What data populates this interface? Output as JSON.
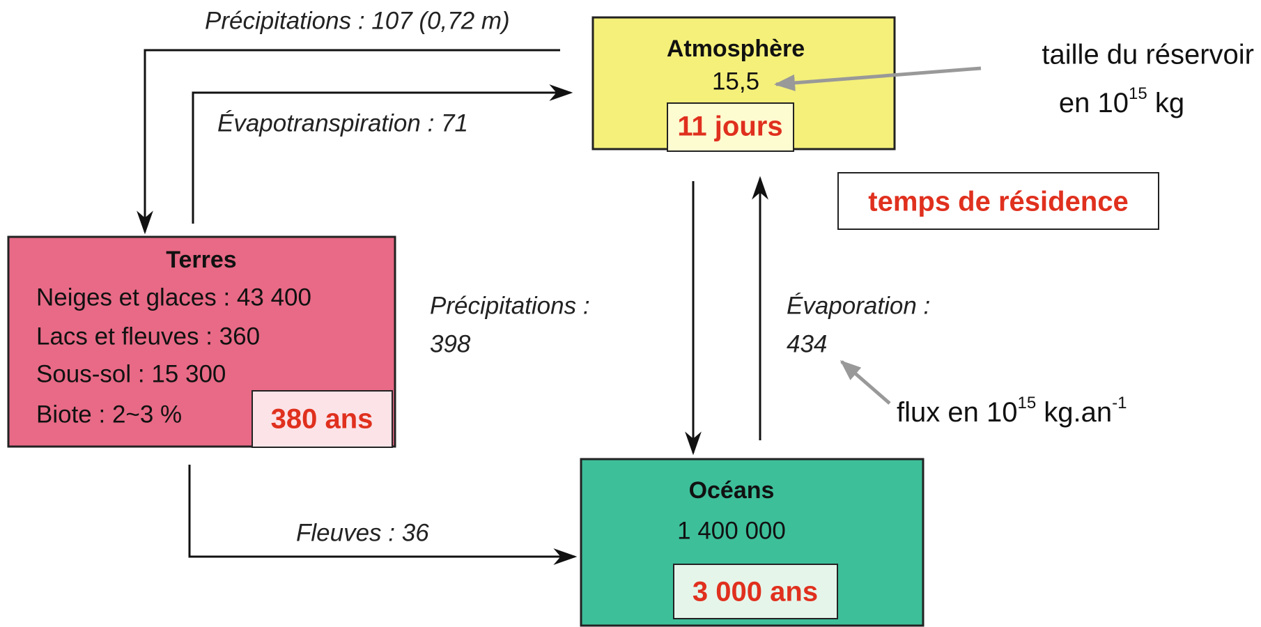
{
  "nodes": [
    {
      "title": "Atmosphère",
      "value": "15,5",
      "residence": "11 jours"
    },
    {
      "title": "Terres",
      "lines": [
        "Neiges et glaces : 43 400",
        "Lacs et fleuves : 360",
        "Sous-sol : 15 300",
        "Biote : 2~3 %"
      ],
      "residence": "380 ans"
    },
    {
      "title": "Océans",
      "value": "1 400 000",
      "residence": "3 000 ans"
    }
  ],
  "flows": [
    {
      "label": "Précipitations : 107 (0,72 m)"
    },
    {
      "label": "Évapotranspiration : 71"
    },
    {
      "label": [
        "Précipitations :",
        "398"
      ]
    },
    {
      "label": [
        "Évaporation :",
        "434"
      ]
    },
    {
      "label": "Fleuves : 36"
    }
  ],
  "legend": {
    "residence": "temps de résidence",
    "reservoir": {
      "line1": "taille du réservoir",
      "line2": "en 10",
      "exp": "15",
      "unit": " kg"
    },
    "flux": {
      "text": "flux en 10",
      "exp": "15",
      "unit": " kg.an",
      "exp2": "-1"
    }
  }
}
